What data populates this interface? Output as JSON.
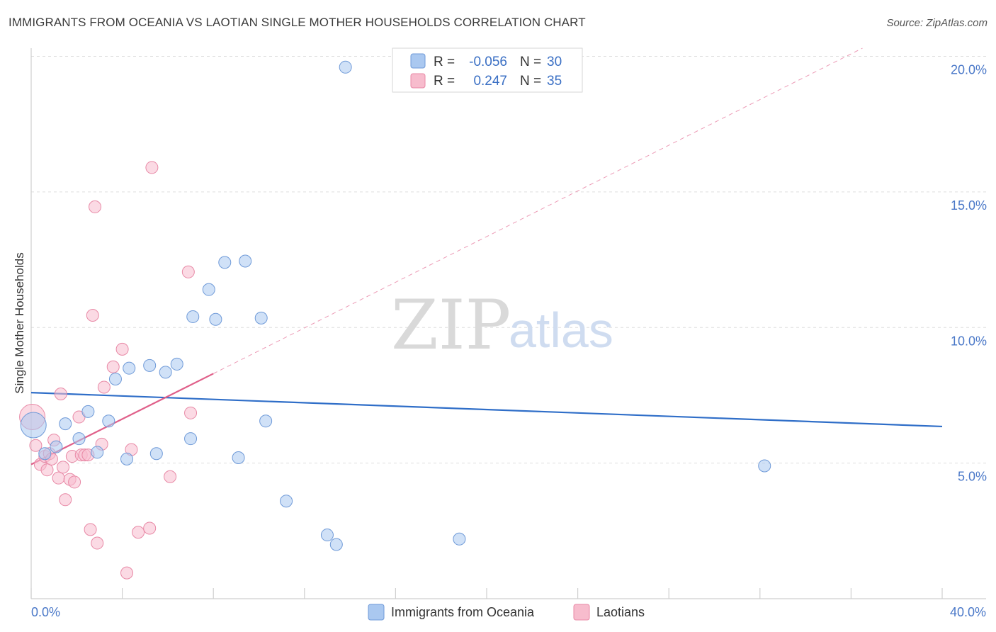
{
  "header": {
    "title": "IMMIGRANTS FROM OCEANIA VS LAOTIAN SINGLE MOTHER HOUSEHOLDS CORRELATION CHART",
    "source": "Source: ZipAtlas.com"
  },
  "watermark": {
    "zip": "ZIP",
    "atlas": "atlas"
  },
  "legend": {
    "rows": [
      {
        "r_label": "R =",
        "r_value": "-0.056",
        "n_label": "N =",
        "n_value": "30",
        "color": "#aac8f0",
        "stroke": "#6f9ad8"
      },
      {
        "r_label": "R =",
        "r_value": "0.247",
        "n_label": "N =",
        "n_value": "35",
        "color": "#f7bccd",
        "stroke": "#e889a6"
      }
    ]
  },
  "chart_data": {
    "type": "scatter",
    "title": "IMMIGRANTS FROM OCEANIA VS LAOTIAN SINGLE MOTHER HOUSEHOLDS CORRELATION CHART",
    "xlabel": "",
    "ylabel": "Single Mother Households",
    "xlim": [
      0,
      40
    ],
    "ylim": [
      0,
      20.5
    ],
    "x_tick_labels": [
      "0.0%",
      "40.0%"
    ],
    "y_ticks": [
      5,
      10,
      15,
      20
    ],
    "y_tick_labels": [
      "5.0%",
      "10.0%",
      "15.0%",
      "20.0%"
    ],
    "series": [
      {
        "name": "Immigrants from Oceania",
        "color": "#aac8f0",
        "stroke": "#6f9ad8",
        "line_color": "#2f6ec8",
        "trend": {
          "x0": 0,
          "y0": 7.6,
          "x1": 40,
          "y1": 6.35
        },
        "points": [
          {
            "x": 0.1,
            "y": 6.4,
            "big": true
          },
          {
            "x": 1.5,
            "y": 6.45
          },
          {
            "x": 2.5,
            "y": 6.9
          },
          {
            "x": 1.1,
            "y": 5.6
          },
          {
            "x": 2.1,
            "y": 5.9
          },
          {
            "x": 2.9,
            "y": 5.4
          },
          {
            "x": 3.4,
            "y": 6.55
          },
          {
            "x": 3.7,
            "y": 8.1
          },
          {
            "x": 4.3,
            "y": 8.5
          },
          {
            "x": 5.2,
            "y": 8.6
          },
          {
            "x": 5.9,
            "y": 8.35
          },
          {
            "x": 6.4,
            "y": 8.65
          },
          {
            "x": 4.2,
            "y": 5.15
          },
          {
            "x": 5.5,
            "y": 5.35
          },
          {
            "x": 7.0,
            "y": 5.9
          },
          {
            "x": 7.1,
            "y": 10.4
          },
          {
            "x": 8.1,
            "y": 10.3
          },
          {
            "x": 7.8,
            "y": 11.4
          },
          {
            "x": 8.5,
            "y": 12.4
          },
          {
            "x": 9.4,
            "y": 12.45
          },
          {
            "x": 10.1,
            "y": 10.35
          },
          {
            "x": 9.1,
            "y": 5.2
          },
          {
            "x": 10.3,
            "y": 6.55
          },
          {
            "x": 11.2,
            "y": 3.6
          },
          {
            "x": 13.0,
            "y": 2.35
          },
          {
            "x": 13.4,
            "y": 2.0
          },
          {
            "x": 13.8,
            "y": 19.6
          },
          {
            "x": 18.8,
            "y": 2.2
          },
          {
            "x": 32.2,
            "y": 4.9
          },
          {
            "x": 0.6,
            "y": 5.35
          }
        ]
      },
      {
        "name": "Laotians",
        "color": "#f7bccd",
        "stroke": "#e889a6",
        "line_color": "#e0608a",
        "trend": {
          "x0": 0,
          "y0": 4.95,
          "x1": 8.0,
          "y1": 8.3
        },
        "trend_dash": {
          "x0": 8.0,
          "y0": 8.3,
          "x1": 36.5,
          "y1": 20.3
        },
        "points": [
          {
            "x": 0.05,
            "y": 6.7,
            "big": true
          },
          {
            "x": 0.2,
            "y": 5.65
          },
          {
            "x": 0.4,
            "y": 4.95
          },
          {
            "x": 0.6,
            "y": 5.25
          },
          {
            "x": 0.7,
            "y": 4.75
          },
          {
            "x": 0.8,
            "y": 5.35
          },
          {
            "x": 0.9,
            "y": 5.15
          },
          {
            "x": 1.0,
            "y": 5.85
          },
          {
            "x": 1.2,
            "y": 4.45
          },
          {
            "x": 1.3,
            "y": 7.55
          },
          {
            "x": 1.4,
            "y": 4.85
          },
          {
            "x": 1.5,
            "y": 3.65
          },
          {
            "x": 1.7,
            "y": 4.4
          },
          {
            "x": 1.8,
            "y": 5.25
          },
          {
            "x": 1.9,
            "y": 4.3
          },
          {
            "x": 2.1,
            "y": 6.7
          },
          {
            "x": 2.2,
            "y": 5.3
          },
          {
            "x": 2.35,
            "y": 5.3
          },
          {
            "x": 2.5,
            "y": 5.3
          },
          {
            "x": 2.6,
            "y": 2.55
          },
          {
            "x": 2.7,
            "y": 10.45
          },
          {
            "x": 2.8,
            "y": 14.45
          },
          {
            "x": 2.9,
            "y": 2.05
          },
          {
            "x": 3.1,
            "y": 5.7
          },
          {
            "x": 3.2,
            "y": 7.8
          },
          {
            "x": 3.6,
            "y": 8.55
          },
          {
            "x": 4.0,
            "y": 9.2
          },
          {
            "x": 4.2,
            "y": 0.95
          },
          {
            "x": 4.4,
            "y": 5.5
          },
          {
            "x": 4.7,
            "y": 2.45
          },
          {
            "x": 5.2,
            "y": 2.6
          },
          {
            "x": 5.3,
            "y": 15.9
          },
          {
            "x": 6.1,
            "y": 4.5
          },
          {
            "x": 6.9,
            "y": 12.05
          },
          {
            "x": 7.0,
            "y": 6.85
          }
        ]
      }
    ]
  }
}
